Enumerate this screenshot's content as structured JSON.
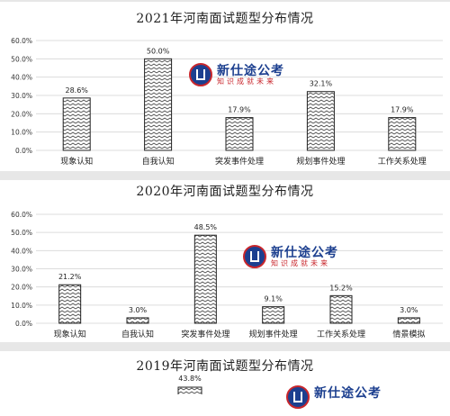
{
  "watermark": {
    "main": "新仕途公考",
    "sub": "知识成就未来"
  },
  "chart_data": [
    {
      "type": "bar",
      "title": "2021年河南面试题型分布情况",
      "categories": [
        "现象认知",
        "自我认知",
        "突发事件处理",
        "规划事件处理",
        "工作关系处理"
      ],
      "values": [
        28.6,
        50.0,
        17.9,
        32.1,
        17.9
      ],
      "value_labels": [
        "28.6%",
        "50.0%",
        "17.9%",
        "32.1%",
        "17.9%"
      ],
      "y_ticks": [
        "0.0%",
        "10.0%",
        "20.0%",
        "30.0%",
        "40.0%",
        "50.0%",
        "60.0%"
      ],
      "ylim": [
        0,
        60
      ]
    },
    {
      "type": "bar",
      "title": "2020年河南面试题型分布情况",
      "categories": [
        "现象认知",
        "自我认知",
        "突发事件处理",
        "规划事件处理",
        "工作关系处理",
        "情景模拟"
      ],
      "values": [
        21.2,
        3.0,
        48.5,
        9.1,
        15.2,
        3.0
      ],
      "value_labels": [
        "21.2%",
        "3.0%",
        "48.5%",
        "9.1%",
        "15.2%",
        "3.0%"
      ],
      "y_ticks": [
        "0.0%",
        "10.0%",
        "20.0%",
        "30.0%",
        "40.0%",
        "50.0%",
        "60.0%"
      ],
      "ylim": [
        0,
        60
      ]
    },
    {
      "type": "bar",
      "title": "2019年河南面试题型分布情况",
      "values": [
        43.8
      ],
      "value_labels": [
        "43.8%"
      ]
    }
  ]
}
